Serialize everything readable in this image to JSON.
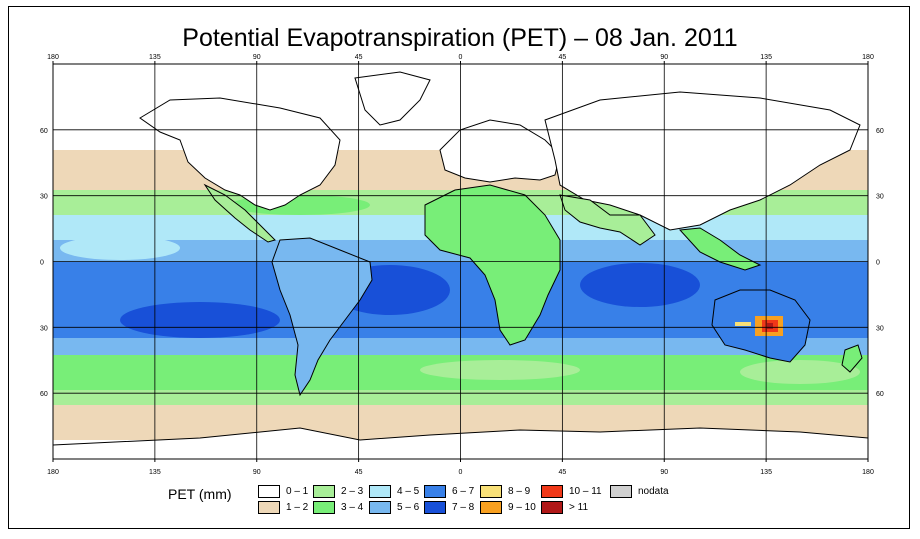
{
  "title": "Potential Evapotranspiration (PET) – 08 Jan. 2011",
  "axes": {
    "x_ticks": [
      "180",
      "135",
      "90",
      "45",
      "0",
      "45",
      "90",
      "135",
      "180"
    ],
    "y_ticks": [
      "60",
      "30",
      "0",
      "30",
      "60"
    ]
  },
  "legend": {
    "title": "PET (mm)",
    "items": [
      {
        "label": "0 – 1",
        "color": "#ffffff"
      },
      {
        "label": "1 – 2",
        "color": "#eed8b8"
      },
      {
        "label": "2 – 3",
        "color": "#a8ee98"
      },
      {
        "label": "3 – 4",
        "color": "#78ee78"
      },
      {
        "label": "4 – 5",
        "color": "#b0e8f8"
      },
      {
        "label": "5 – 6",
        "color": "#78b8f0"
      },
      {
        "label": "6 – 7",
        "color": "#3880e8"
      },
      {
        "label": "7 – 8",
        "color": "#1850d8"
      },
      {
        "label": "8 – 9",
        "color": "#f8e078"
      },
      {
        "label": "9 – 10",
        "color": "#f8a020"
      },
      {
        "label": "10 – 11",
        "color": "#f03818"
      },
      {
        "label": "> 11",
        "color": "#b01818"
      },
      {
        "label": "nodata",
        "color": "#d0d0d0"
      }
    ]
  }
}
